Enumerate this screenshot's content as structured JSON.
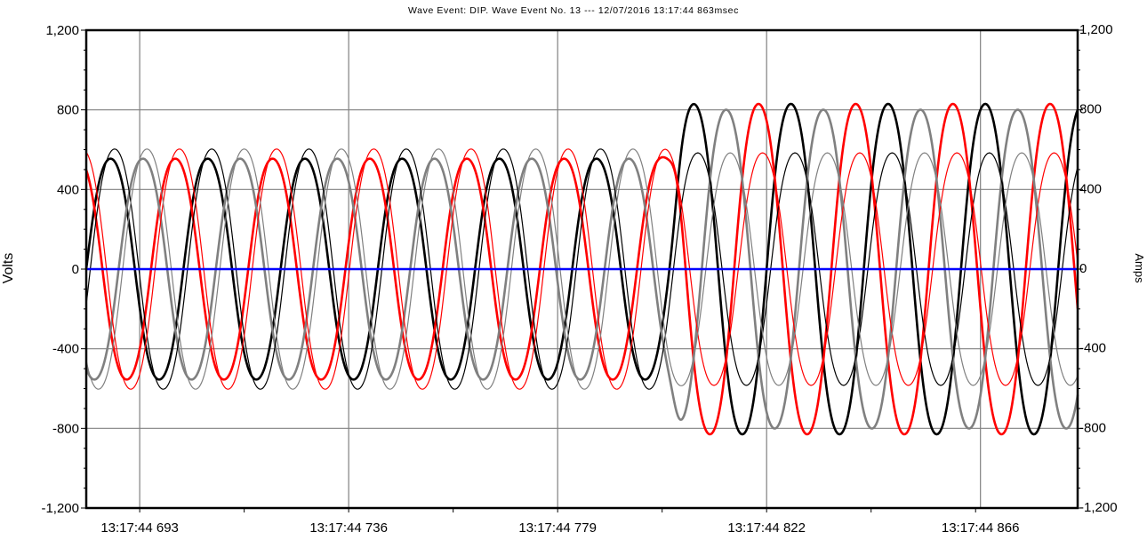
{
  "chart_data": {
    "type": "line",
    "title": "Wave Event: DIP. Wave Event No. 13 ---  12/07/2016 13:17:44 863msec",
    "ylabel": "Volts",
    "y2label": "Amps",
    "ylim": [
      -1200,
      1200
    ],
    "y2lim": [
      -1200,
      1200
    ],
    "yticks": [
      -1200,
      -800,
      -400,
      0,
      400,
      800,
      1200
    ],
    "ytick_labels": [
      "-1,200",
      "-800",
      "-400",
      "0",
      "400",
      "800",
      "1,200"
    ],
    "y2tick_labels": [
      "-1,200",
      "-800",
      "-400",
      "0",
      "400",
      "800",
      "1,200"
    ],
    "xlim_ms": [
      0,
      204
    ],
    "xtick_ms": [
      11,
      54,
      97,
      140,
      184
    ],
    "xtick_labels": [
      "13:17:44 693",
      "13:17:44 736",
      "13:17:44 779",
      "13:17:44 822",
      "13:17:44 866"
    ],
    "grid": true,
    "legend": "none",
    "dip_start_ms": 121,
    "series": [
      {
        "color": "#000000",
        "width": 2.6,
        "amp_pre": 575,
        "amp_post": 860,
        "phase_deg": 0
      },
      {
        "color": "#ff0000",
        "width": 2.6,
        "amp_pre": 575,
        "amp_post": 860,
        "phase_deg": 120
      },
      {
        "color": "#808080",
        "width": 2.6,
        "amp_pre": 575,
        "amp_post": 830,
        "phase_deg": 240
      },
      {
        "color": "#000000",
        "width": 1.2,
        "amp_pre": 625,
        "amp_post": 605,
        "phase_deg": -15
      },
      {
        "color": "#ff0000",
        "width": 1.2,
        "amp_pre": 625,
        "amp_post": 605,
        "phase_deg": 105
      },
      {
        "color": "#808080",
        "width": 1.2,
        "amp_pre": 625,
        "amp_post": 605,
        "phase_deg": 225
      },
      {
        "color": "#0000ff",
        "width": 2.4,
        "constant": 0
      }
    ]
  }
}
